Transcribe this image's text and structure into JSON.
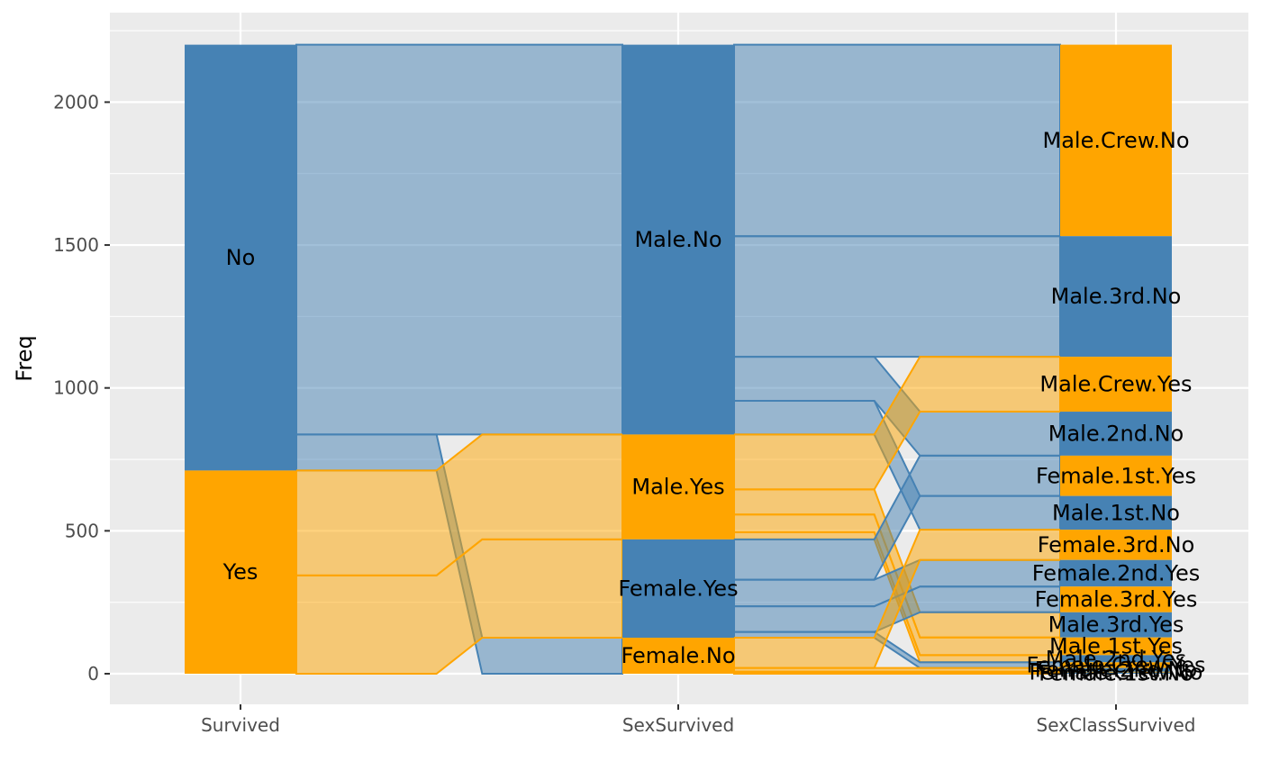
{
  "chart_data": {
    "type": "alluvial",
    "ylabel": "Freq",
    "xlabel": "",
    "ylim": [
      -100,
      2300
    ],
    "y_ticks": [
      0,
      500,
      1000,
      1500,
      2000
    ],
    "grid": true,
    "legend": "none",
    "axes": [
      "Survived",
      "SexSurvived",
      "SexClassSurvived"
    ],
    "colors": {
      "No": "#4682b4",
      "Yes": "#ffa500",
      "panel": "#ebebeb",
      "grid": "#ffffff"
    },
    "strata": [
      [
        {
          "label": "No",
          "value": 1490,
          "fill": "No"
        },
        {
          "label": "Yes",
          "value": 711,
          "fill": "Yes"
        }
      ],
      [
        {
          "label": "Male.No",
          "value": 1364,
          "fill": "No"
        },
        {
          "label": "Male.Yes",
          "value": 367,
          "fill": "Yes"
        },
        {
          "label": "Female.Yes",
          "value": 344,
          "fill": "No"
        },
        {
          "label": "Female.No",
          "value": 126,
          "fill": "Yes"
        }
      ],
      [
        {
          "label": "Male.Crew.No",
          "value": 670,
          "fill": "Yes"
        },
        {
          "label": "Male.3rd.No",
          "value": 422,
          "fill": "No"
        },
        {
          "label": "Male.Crew.Yes",
          "value": 192,
          "fill": "Yes"
        },
        {
          "label": "Male.2nd.No",
          "value": 154,
          "fill": "No"
        },
        {
          "label": "Female.1st.Yes",
          "value": 141,
          "fill": "Yes"
        },
        {
          "label": "Male.1st.No",
          "value": 118,
          "fill": "No"
        },
        {
          "label": "Female.3rd.No",
          "value": 106,
          "fill": "Yes"
        },
        {
          "label": "Female.2nd.Yes",
          "value": 93,
          "fill": "No"
        },
        {
          "label": "Female.3rd.Yes",
          "value": 90,
          "fill": "Yes"
        },
        {
          "label": "Male.3rd.Yes",
          "value": 88,
          "fill": "No"
        },
        {
          "label": "Male.1st.Yes",
          "value": 62,
          "fill": "Yes"
        },
        {
          "label": "Male.2nd.Yes",
          "value": 25,
          "fill": "No"
        },
        {
          "label": "Female.Crew.Yes",
          "value": 20,
          "fill": "Yes"
        },
        {
          "label": "Female.2nd.No",
          "value": 13,
          "fill": "No"
        },
        {
          "label": "Female.Crew.No",
          "value": 3,
          "fill": "Yes"
        },
        {
          "label": "Female.1st.No",
          "value": 4,
          "fill": "No"
        }
      ]
    ],
    "flows": [
      [
        {
          "from": 0,
          "to": 0,
          "value": 1364,
          "fill": "No"
        },
        {
          "from": 0,
          "to": 3,
          "value": 126,
          "fill": "No"
        },
        {
          "from": 1,
          "to": 1,
          "value": 367,
          "fill": "Yes"
        },
        {
          "from": 1,
          "to": 2,
          "value": 344,
          "fill": "Yes"
        }
      ],
      [
        {
          "from": 0,
          "to": 0,
          "value": 670,
          "fill": "No"
        },
        {
          "from": 0,
          "to": 1,
          "value": 422,
          "fill": "No"
        },
        {
          "from": 0,
          "to": 3,
          "value": 154,
          "fill": "No"
        },
        {
          "from": 0,
          "to": 5,
          "value": 118,
          "fill": "No"
        },
        {
          "from": 1,
          "to": 2,
          "value": 192,
          "fill": "Yes"
        },
        {
          "from": 1,
          "to": 9,
          "value": 88,
          "fill": "Yes"
        },
        {
          "from": 1,
          "to": 10,
          "value": 62,
          "fill": "Yes"
        },
        {
          "from": 1,
          "to": 11,
          "value": 25,
          "fill": "Yes"
        },
        {
          "from": 2,
          "to": 4,
          "value": 141,
          "fill": "No"
        },
        {
          "from": 2,
          "to": 7,
          "value": 93,
          "fill": "No"
        },
        {
          "from": 2,
          "to": 8,
          "value": 90,
          "fill": "No"
        },
        {
          "from": 2,
          "to": 12,
          "value": 20,
          "fill": "No"
        },
        {
          "from": 3,
          "to": 6,
          "value": 106,
          "fill": "Yes"
        },
        {
          "from": 3,
          "to": 13,
          "value": 13,
          "fill": "Yes"
        },
        {
          "from": 3,
          "to": 14,
          "value": 3,
          "fill": "Yes"
        },
        {
          "from": 3,
          "to": 15,
          "value": 4,
          "fill": "Yes"
        }
      ]
    ]
  }
}
